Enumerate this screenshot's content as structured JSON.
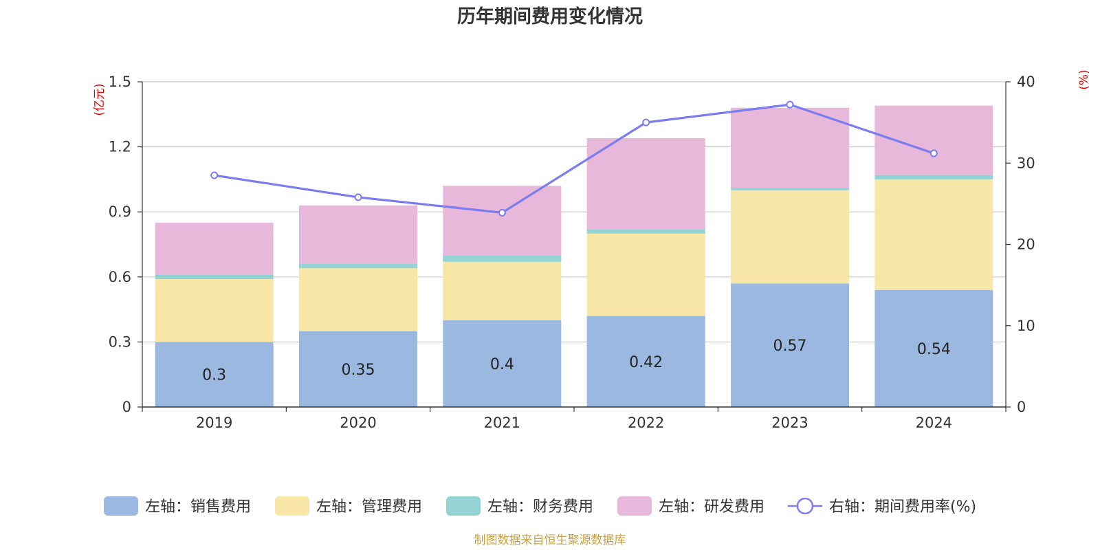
{
  "chart_data": {
    "type": "bar",
    "title": "历年期间费用变化情况",
    "categories": [
      "2019",
      "2020",
      "2021",
      "2022",
      "2023",
      "2024"
    ],
    "left_axis": {
      "unit": "(亿元)",
      "ticks": [
        "0",
        "0.3",
        "0.6",
        "0.9",
        "1.2",
        "1.5"
      ],
      "ylim": [
        0,
        1.5
      ]
    },
    "right_axis": {
      "unit": "(%)",
      "ticks": [
        "0",
        "10",
        "20",
        "30",
        "40"
      ],
      "ylim": [
        0,
        40
      ]
    },
    "series": [
      {
        "name": "左轴：销售费用",
        "type": "bar",
        "axis": "left",
        "color": "#9bb8e0",
        "values": [
          0.3,
          0.35,
          0.4,
          0.42,
          0.57,
          0.54
        ],
        "labels": [
          "0.3",
          "0.35",
          "0.4",
          "0.42",
          "0.57",
          "0.54"
        ]
      },
      {
        "name": "左轴：管理费用",
        "type": "bar",
        "axis": "left",
        "color": "#f7e6a6",
        "values": [
          0.29,
          0.29,
          0.27,
          0.38,
          0.43,
          0.51
        ]
      },
      {
        "name": "左轴：财务费用",
        "type": "bar",
        "axis": "left",
        "color": "#93d3d3",
        "values": [
          0.02,
          0.02,
          0.03,
          0.02,
          0.01,
          0.02
        ]
      },
      {
        "name": "左轴：研发费用",
        "type": "bar",
        "axis": "left",
        "color": "#e7b8d9",
        "values": [
          0.24,
          0.27,
          0.32,
          0.42,
          0.37,
          0.32
        ]
      },
      {
        "name": "右轴：期间费用率(%)",
        "type": "line",
        "axis": "right",
        "color": "#7a7cef",
        "values": [
          28.5,
          25.8,
          23.9,
          35.0,
          37.2,
          31.2
        ]
      }
    ],
    "grid": true,
    "legend_position": "bottom"
  },
  "source_text": "制图数据来自恒生聚源数据库"
}
